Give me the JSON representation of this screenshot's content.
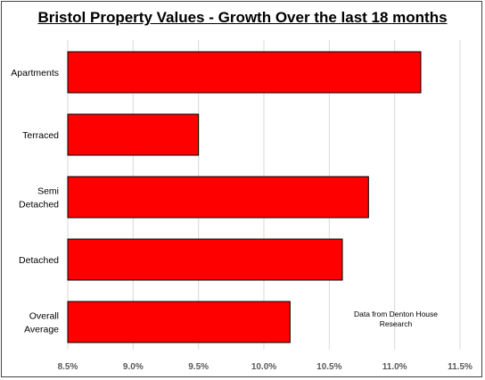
{
  "chart_data": {
    "type": "bar",
    "orientation": "horizontal",
    "title": "Bristol Property Values - Growth Over the last 18 months",
    "categories": [
      [
        "Apartments"
      ],
      [
        "Terraced"
      ],
      [
        "Semi",
        "Detached"
      ],
      [
        "Detached"
      ],
      [
        "Overall",
        "Average"
      ]
    ],
    "values": [
      11.2,
      9.5,
      10.8,
      10.6,
      10.2
    ],
    "unit": "%",
    "xlim": [
      8.5,
      11.5
    ],
    "x_ticks": [
      8.5,
      9.0,
      9.5,
      10.0,
      10.5,
      11.0,
      11.5
    ],
    "x_tick_labels": [
      "8.5%",
      "9.0%",
      "9.5%",
      "10.0%",
      "10.5%",
      "11.0%",
      "11.5%"
    ],
    "grid": "vertical",
    "bar_color": "#ff0000",
    "bar_edge_color": "#000000",
    "annotation": [
      "Data from Denton House",
      "Research"
    ]
  }
}
